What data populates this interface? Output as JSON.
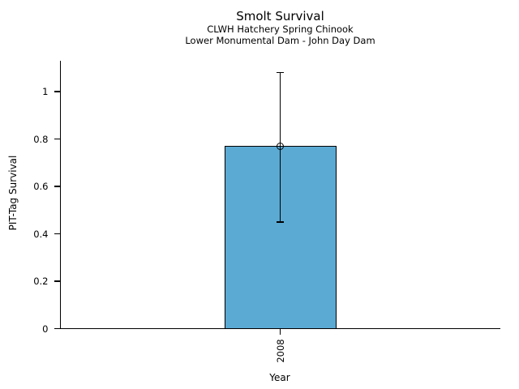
{
  "page": {
    "background_color": "#FFFFFF"
  },
  "chart_data": {
    "type": "bar",
    "title": "Smolt Survival",
    "subtitle_lines": [
      "CLWH Hatchery Spring Chinook",
      "Lower Monumental Dam - John Day Dam"
    ],
    "xlabel": "Year",
    "ylabel": "PIT-Tag Survival",
    "categories": [
      "2008"
    ],
    "values": [
      0.77
    ],
    "error_bars": [
      {
        "lower": 0.45,
        "upper": 1.08
      }
    ],
    "marker": "open-circle",
    "yticks": [
      0,
      0.2,
      0.4,
      0.6,
      0.8,
      1
    ],
    "ytick_labels": [
      "0",
      "0.2",
      "0.4",
      "0.6",
      "0.8",
      "1"
    ],
    "ylim": [
      0,
      1.13
    ],
    "grid": false,
    "legend": "none",
    "colors": {
      "bar_fill": "#5BAAD4",
      "bar_edge": "#000000",
      "error_bar": "#000000",
      "axis": "#000000",
      "text": "#000000",
      "background": "#FFFFFF"
    }
  }
}
